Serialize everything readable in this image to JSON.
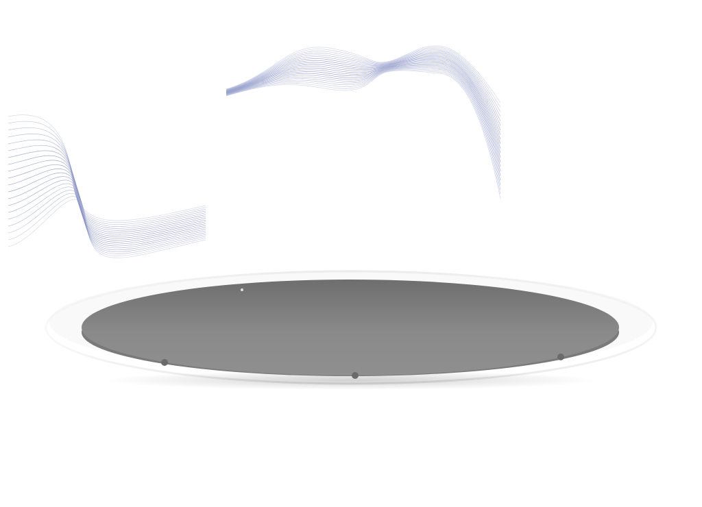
{
  "scene": {
    "background_color": "#ffffff",
    "wave_color": "#8a93c4",
    "platform_color": "#8a8a8a",
    "platform_rim_color": "#e6e6e6",
    "platform_dot_color": "#6e6e6e",
    "icons": [
      "wave-lines-icon",
      "stage-platform-icon"
    ]
  }
}
